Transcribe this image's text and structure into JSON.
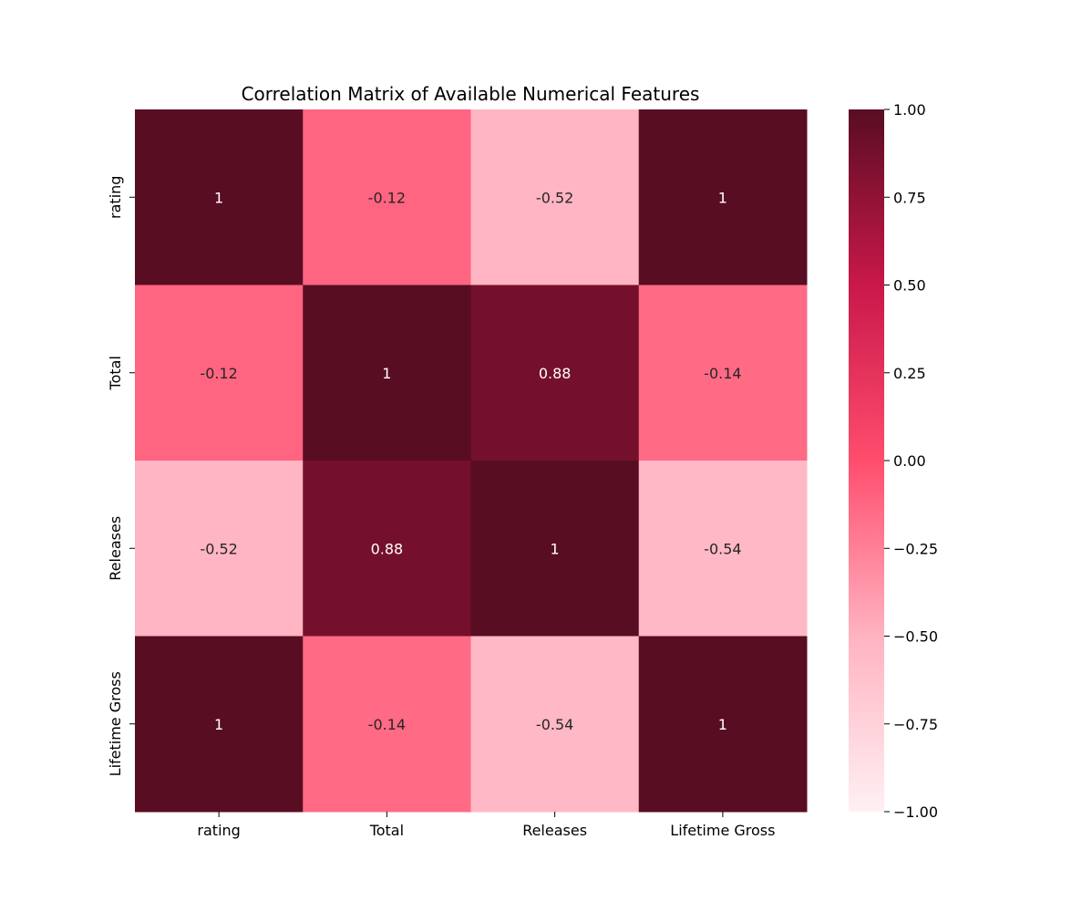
{
  "chart_data": {
    "type": "heatmap",
    "title": "Correlation Matrix of Available Numerical Features",
    "row_labels": [
      "rating",
      "Total",
      "Releases",
      "Lifetime Gross"
    ],
    "col_labels": [
      "rating",
      "Total",
      "Releases",
      "Lifetime Gross"
    ],
    "values": [
      [
        1,
        -0.12,
        -0.52,
        1
      ],
      [
        -0.12,
        1,
        0.88,
        -0.14
      ],
      [
        -0.52,
        0.88,
        1,
        -0.54
      ],
      [
        1,
        -0.14,
        -0.54,
        1
      ]
    ],
    "annotations": [
      [
        "1",
        "-0.12",
        "-0.52",
        "1"
      ],
      [
        "-0.12",
        "1",
        "0.88",
        "-0.14"
      ],
      [
        "-0.52",
        "0.88",
        "1",
        "-0.54"
      ],
      [
        "1",
        "-0.14",
        "-0.54",
        "1"
      ]
    ],
    "colorbar": {
      "vmin": -1.0,
      "vmax": 1.0,
      "ticks": [
        1.0,
        0.75,
        0.5,
        0.25,
        0.0,
        -0.25,
        -0.5,
        -0.75,
        -1.0
      ],
      "tick_labels": [
        "1.00",
        "0.75",
        "0.50",
        "0.25",
        "0.00",
        "−0.25",
        "−0.50",
        "−0.75",
        "−1.00"
      ],
      "colors": [
        "#fff0f3",
        "#ffb3c1",
        "#ff4d6d",
        "#c9184a",
        "#590d22"
      ]
    }
  }
}
